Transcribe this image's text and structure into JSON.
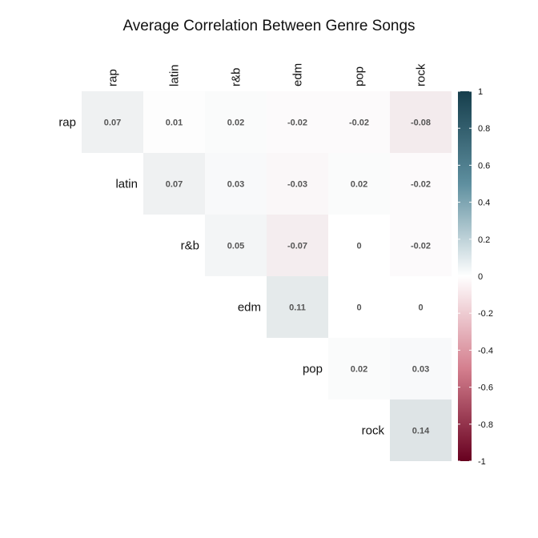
{
  "chart_data": {
    "type": "heatmap",
    "title": "Average Correlation Between Genre Songs",
    "row_labels": [
      "rap",
      "latin",
      "r&b",
      "edm",
      "pop",
      "rock"
    ],
    "col_labels": [
      "rap",
      "latin",
      "r&b",
      "edm",
      "pop",
      "rock"
    ],
    "matrix": [
      [
        0.07,
        0.01,
        0.02,
        -0.02,
        -0.02,
        -0.08
      ],
      [
        null,
        0.07,
        0.03,
        -0.03,
        0.02,
        -0.02
      ],
      [
        null,
        null,
        0.05,
        -0.07,
        0,
        -0.02
      ],
      [
        null,
        null,
        null,
        0.11,
        0,
        0
      ],
      [
        null,
        null,
        null,
        null,
        0.02,
        0.03
      ],
      [
        null,
        null,
        null,
        null,
        null,
        0.14
      ]
    ],
    "value_labels": [
      [
        "0.07",
        "0.01",
        "0.02",
        "-0.02",
        "-0.02",
        "-0.08"
      ],
      [
        "",
        "0.07",
        "0.03",
        "-0.03",
        "0.02",
        "-0.02"
      ],
      [
        "",
        "",
        "0.05",
        "-0.07",
        "0",
        "-0.02"
      ],
      [
        "",
        "",
        "",
        "0.11",
        "0",
        "0"
      ],
      [
        "",
        "",
        "",
        "",
        "0.02",
        "0.03"
      ],
      [
        "",
        "",
        "",
        "",
        "",
        "0.14"
      ]
    ],
    "layout": "upper-triangle",
    "color_scale": {
      "min": -1,
      "max": 1,
      "low_color": "#67001f",
      "mid_color": "#ffffff",
      "high_color": "#163e4c",
      "ticks": [
        1,
        0.8,
        0.6,
        0.4,
        0.2,
        0,
        -0.2,
        -0.4,
        -0.6,
        -0.8,
        -1
      ],
      "tick_labels": [
        "1",
        "0.8",
        "0.6",
        "0.4",
        "0.2",
        "0",
        "-0.2",
        "-0.4",
        "-0.6",
        "-0.8",
        "-1"
      ],
      "placement": "right"
    }
  }
}
